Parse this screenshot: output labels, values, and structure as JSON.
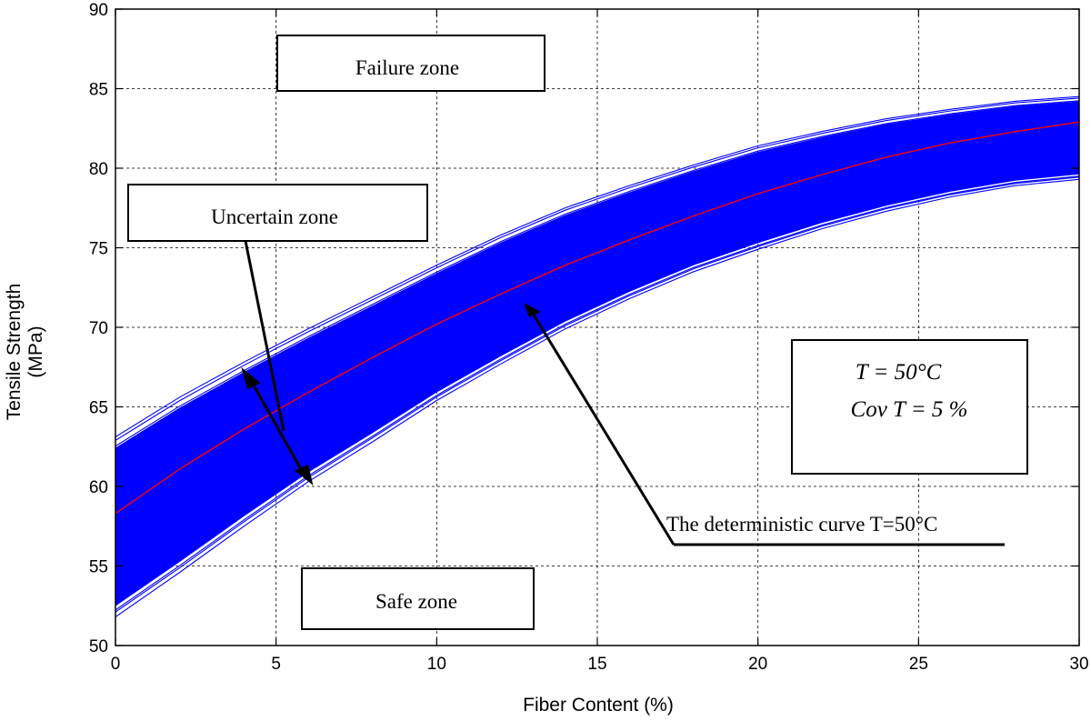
{
  "chart_data": {
    "type": "line",
    "xlabel": "Fiber Content (%)",
    "ylabel_lines": [
      "Tensile Strength",
      "(MPa)"
    ],
    "xlim": [
      0,
      30
    ],
    "ylim": [
      50,
      90
    ],
    "x_ticks": [
      0,
      5,
      10,
      15,
      20,
      25,
      30
    ],
    "y_ticks": [
      50,
      55,
      60,
      65,
      70,
      75,
      80,
      85,
      90
    ],
    "grid": true,
    "colors": {
      "band": "#0000ff",
      "deterministic": "#ff0000"
    },
    "x": [
      0,
      2,
      4,
      6,
      8,
      10,
      12,
      14,
      16,
      18,
      20,
      22,
      24,
      26,
      28,
      30
    ],
    "series": [
      {
        "role": "deterministic",
        "values": [
          58.3,
          61.1,
          63.6,
          65.9,
          68.1,
          70.2,
          72.1,
          73.9,
          75.5,
          77.0,
          78.4,
          79.6,
          80.7,
          81.6,
          82.3,
          82.9
        ]
      },
      {
        "role": "band-upper",
        "values": [
          63.1,
          65.6,
          67.8,
          69.9,
          71.9,
          73.9,
          75.8,
          77.5,
          78.9,
          80.2,
          81.4,
          82.3,
          83.1,
          83.7,
          84.2,
          84.5
        ]
      },
      {
        "role": "band-lower",
        "values": [
          51.8,
          54.6,
          57.5,
          60.3,
          62.8,
          65.4,
          67.7,
          69.9,
          71.8,
          73.5,
          74.9,
          76.2,
          77.3,
          78.2,
          78.9,
          79.3
        ]
      }
    ],
    "annotations": {
      "failure_zone": "Failure zone",
      "uncertain_zone": "Uncertain zone",
      "safe_zone": "Safe zone",
      "deterministic_curve": "The deterministic curve T=50°C",
      "param_line1": "T = 50°C",
      "param_line2": "Cov T = 5 %"
    }
  }
}
